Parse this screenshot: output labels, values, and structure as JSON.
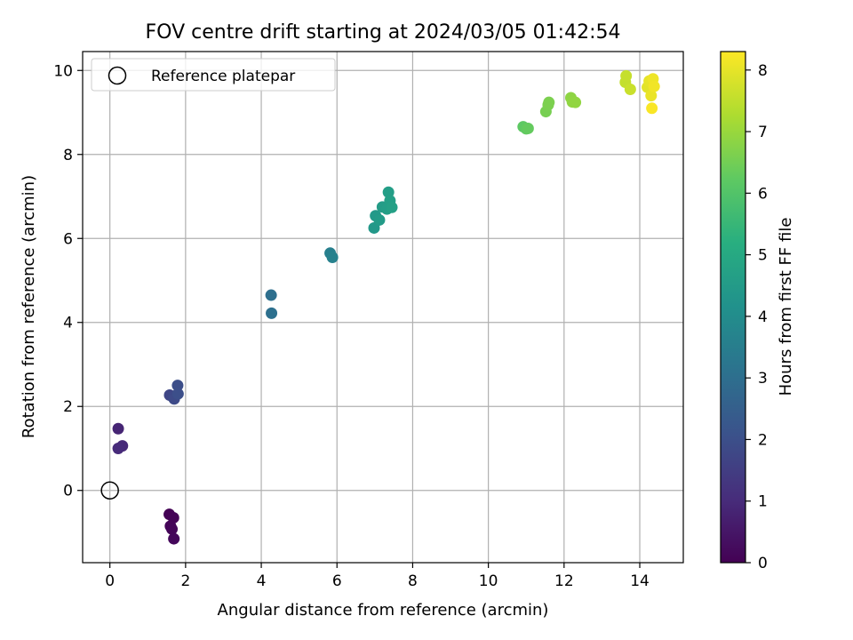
{
  "chart_data": {
    "type": "scatter",
    "title": "FOV centre drift starting at 2024/03/05 01:42:54",
    "xlabel": "Angular distance from reference (arcmin)",
    "ylabel": "Rotation from reference (arcmin)",
    "xlim": [
      -0.72,
      15.15
    ],
    "ylim": [
      -1.72,
      10.45
    ],
    "xticks": [
      0,
      2,
      4,
      6,
      8,
      10,
      12,
      14
    ],
    "xtick_labels": [
      "0",
      "2",
      "4",
      "6",
      "8",
      "10",
      "12",
      "14"
    ],
    "yticks": [
      0,
      2,
      4,
      6,
      8,
      10
    ],
    "ytick_labels": [
      "0",
      "2",
      "4",
      "6",
      "8",
      "10"
    ],
    "grid": true,
    "legend": {
      "placement": "upper-left",
      "entries": [
        "Reference platepar"
      ]
    },
    "reference_point": {
      "name": "Reference platepar",
      "x": 0,
      "y": 0,
      "marker": "open-circle"
    },
    "colorbar": {
      "label": "Hours from first FF file",
      "colormap": "viridis",
      "range": [
        0,
        8.3
      ],
      "ticks": [
        0,
        1,
        2,
        3,
        4,
        5,
        6,
        7,
        8
      ],
      "tick_labels": [
        "0",
        "1",
        "2",
        "3",
        "4",
        "5",
        "6",
        "7",
        "8"
      ]
    },
    "points": [
      {
        "x": 1.57,
        "y": -0.57,
        "t": 0.02
      },
      {
        "x": 1.68,
        "y": -0.65,
        "t": 0.05
      },
      {
        "x": 1.6,
        "y": -0.85,
        "t": 0.08
      },
      {
        "x": 1.64,
        "y": -0.92,
        "t": 0.1
      },
      {
        "x": 1.69,
        "y": -1.15,
        "t": 0.15
      },
      {
        "x": 0.22,
        "y": 1.47,
        "t": 0.85
      },
      {
        "x": 0.33,
        "y": 1.06,
        "t": 0.95
      },
      {
        "x": 0.22,
        "y": 1.0,
        "t": 1.0
      },
      {
        "x": 1.58,
        "y": 2.27,
        "t": 1.75
      },
      {
        "x": 1.67,
        "y": 2.22,
        "t": 1.8
      },
      {
        "x": 1.7,
        "y": 2.18,
        "t": 1.85
      },
      {
        "x": 1.79,
        "y": 2.5,
        "t": 1.95
      },
      {
        "x": 1.8,
        "y": 2.3,
        "t": 2.0
      },
      {
        "x": 4.26,
        "y": 4.65,
        "t": 3.0
      },
      {
        "x": 4.27,
        "y": 4.22,
        "t": 3.05
      },
      {
        "x": 5.82,
        "y": 5.65,
        "t": 3.55
      },
      {
        "x": 5.88,
        "y": 5.55,
        "t": 3.6
      },
      {
        "x": 6.98,
        "y": 6.25,
        "t": 4.4
      },
      {
        "x": 7.02,
        "y": 6.54,
        "t": 4.45
      },
      {
        "x": 7.12,
        "y": 6.44,
        "t": 4.5
      },
      {
        "x": 7.2,
        "y": 6.75,
        "t": 4.55
      },
      {
        "x": 7.32,
        "y": 6.7,
        "t": 4.6
      },
      {
        "x": 7.36,
        "y": 7.1,
        "t": 4.62
      },
      {
        "x": 7.4,
        "y": 6.9,
        "t": 4.65
      },
      {
        "x": 7.45,
        "y": 6.74,
        "t": 4.7
      },
      {
        "x": 10.92,
        "y": 8.66,
        "t": 6.2
      },
      {
        "x": 11.0,
        "y": 8.61,
        "t": 6.25
      },
      {
        "x": 11.05,
        "y": 8.62,
        "t": 6.3
      },
      {
        "x": 11.52,
        "y": 9.02,
        "t": 6.55
      },
      {
        "x": 11.58,
        "y": 9.18,
        "t": 6.6
      },
      {
        "x": 11.6,
        "y": 9.24,
        "t": 6.62
      },
      {
        "x": 12.18,
        "y": 9.35,
        "t": 6.85
      },
      {
        "x": 12.22,
        "y": 9.25,
        "t": 6.88
      },
      {
        "x": 12.3,
        "y": 9.24,
        "t": 6.9
      },
      {
        "x": 13.62,
        "y": 9.72,
        "t": 7.55
      },
      {
        "x": 13.64,
        "y": 9.87,
        "t": 7.58
      },
      {
        "x": 13.75,
        "y": 9.55,
        "t": 7.62
      },
      {
        "x": 14.2,
        "y": 9.6,
        "t": 7.95
      },
      {
        "x": 14.25,
        "y": 9.75,
        "t": 8.0
      },
      {
        "x": 14.3,
        "y": 9.4,
        "t": 8.05
      },
      {
        "x": 14.35,
        "y": 9.8,
        "t": 8.1
      },
      {
        "x": 14.38,
        "y": 9.62,
        "t": 8.15
      },
      {
        "x": 14.32,
        "y": 9.1,
        "t": 8.25
      }
    ]
  },
  "colors": {
    "reference_marker": "#000000",
    "grid": "#b0b0b0",
    "axes": "#000000",
    "legend_border": "#cccccc"
  }
}
